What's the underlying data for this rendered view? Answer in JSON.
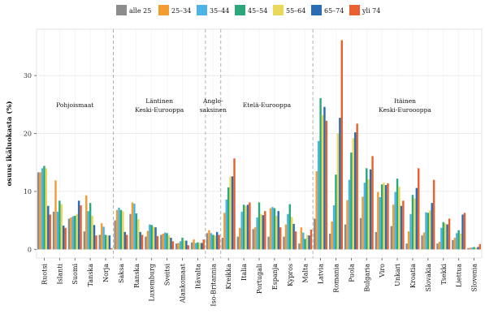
{
  "chart_data": {
    "type": "bar",
    "ylabel": "osuus ikäluokasta (%)",
    "ylim": [
      -1.5,
      38
    ],
    "yticks": [
      0,
      10,
      20,
      30
    ],
    "grid": true,
    "legend_position": "top",
    "categories": [
      "Ruotsi",
      "Islanti",
      "Suomi",
      "Tanska",
      "Norja",
      "Saksa",
      "Ranska",
      "Luxemburg",
      "Sveitsi",
      "Alankomaat",
      "Itävalta",
      "Iso-Britannia",
      "Kreikka",
      "Italia",
      "Portugali",
      "Espanja",
      "Kypros",
      "Malta",
      "Latvia",
      "Romania",
      "Puola",
      "Bulgaria",
      "Viro",
      "Unkari",
      "Kroatia",
      "Slovakia",
      "Tsekki",
      "Liettua",
      "Slovenia"
    ],
    "group_separators_after": [
      4,
      10,
      11,
      17
    ],
    "groups": [
      {
        "lines": [
          "Pohjoismaat"
        ],
        "center_index": 2
      },
      {
        "lines": [
          "Läntinen",
          "Keski-Eurooppa"
        ],
        "center_index": 7.5
      },
      {
        "lines": [
          "Anglo-",
          "saksinen"
        ],
        "center_index": 11
      },
      {
        "lines": [
          "Etelä-Eurooppa"
        ],
        "center_index": 14.5
      },
      {
        "lines": [
          "Itäinen",
          "Keski-Euroooppa"
        ],
        "center_index": 23.5
      }
    ],
    "series": [
      {
        "name": "alle 25",
        "color": "#8c8c8c",
        "values": [
          13.3,
          6.5,
          5.3,
          3.1,
          2.5,
          5.0,
          6.1,
          2.2,
          2.5,
          1.0,
          1.2,
          2.8,
          2.0,
          2.2,
          3.5,
          2.2,
          2.2,
          1.0,
          5.3,
          2.7,
          4.3,
          5.4,
          3.0,
          4.0,
          1.0,
          2.4,
          1.0,
          1.6,
          0.2
        ]
      },
      {
        "name": "25–34",
        "color": "#f39c32",
        "values": [
          13.3,
          11.9,
          5.5,
          9.3,
          4.5,
          6.8,
          8.1,
          3.2,
          2.7,
          1.1,
          1.7,
          3.3,
          6.3,
          3.7,
          3.8,
          7.1,
          4.3,
          3.8,
          13.5,
          4.8,
          8.5,
          9.1,
          9.9,
          7.7,
          3.1,
          2.9,
          1.3,
          2.0,
          0.3
        ]
      },
      {
        "name": "35–44",
        "color": "#4db3e6",
        "values": [
          14.0,
          6.5,
          5.7,
          6.6,
          3.9,
          7.2,
          7.9,
          4.3,
          2.9,
          1.4,
          1.1,
          2.8,
          8.6,
          6.5,
          5.5,
          7.3,
          6.1,
          2.9,
          18.7,
          7.6,
          12.0,
          11.5,
          9.0,
          9.9,
          6.1,
          6.4,
          3.7,
          2.8,
          0.3
        ]
      },
      {
        "name": "45–54",
        "color": "#2aa87c",
        "values": [
          14.4,
          8.4,
          5.8,
          8.0,
          2.5,
          6.8,
          6.2,
          4.2,
          2.8,
          2.0,
          1.2,
          2.5,
          10.7,
          7.7,
          8.1,
          7.1,
          7.8,
          1.8,
          26.1,
          12.9,
          16.7,
          14.0,
          11.2,
          12.2,
          9.4,
          6.3,
          4.7,
          3.3,
          0.4
        ]
      },
      {
        "name": "55–64",
        "color": "#e8d95a",
        "values": [
          14.0,
          7.8,
          6.1,
          5.8,
          2.4,
          6.6,
          5.2,
          3.9,
          2.4,
          1.5,
          1.1,
          2.4,
          12.6,
          7.5,
          6.1,
          5.8,
          5.6,
          2.5,
          23.2,
          20.0,
          19.2,
          12.1,
          11.5,
          10.8,
          8.8,
          6.7,
          4.5,
          2.7,
          0.3
        ]
      },
      {
        "name": "65–74",
        "color": "#2a6db5",
        "values": [
          7.5,
          4.1,
          8.4,
          4.2,
          2.4,
          3.0,
          3.0,
          3.8,
          2.0,
          1.5,
          1.1,
          3.0,
          12.6,
          7.7,
          5.9,
          6.6,
          4.4,
          2.4,
          24.6,
          22.7,
          20.2,
          13.8,
          11.1,
          7.5,
          10.6,
          8.0,
          4.3,
          6.0,
          0.4
        ]
      },
      {
        "name": "yli 74",
        "color": "#e8612e",
        "values": [
          6.0,
          3.7,
          7.6,
          2.4,
          0.2,
          2.5,
          2.5,
          2.3,
          1.4,
          0.7,
          1.7,
          2.5,
          15.7,
          8.1,
          6.6,
          3.8,
          3.1,
          3.4,
          22.2,
          36.1,
          21.7,
          16.1,
          11.4,
          8.4,
          14.0,
          12.0,
          5.3,
          6.3,
          0.9
        ]
      }
    ]
  }
}
